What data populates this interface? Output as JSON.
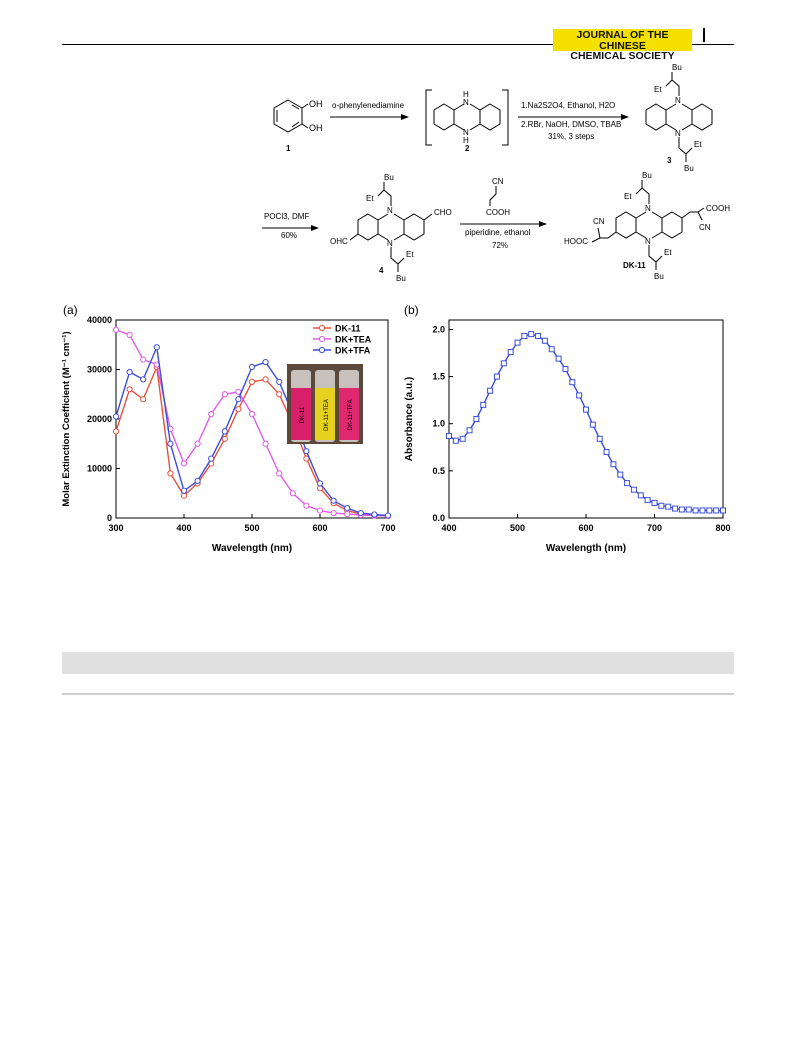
{
  "header": {
    "journal_line1": "JOURNAL OF THE CHINESE",
    "journal_line2": "CHEMICAL SOCIETY"
  },
  "scheme": {
    "reagent_step1": "o-phenylenediamine",
    "reagent_step2a": "1.Na2S2O4, Ethanol, H2O",
    "reagent_step2b": "2.RBr, NaOH, DMSO, TBAB",
    "reagent_step2c": "31%, 3 steps",
    "reagent_step3a": "POCl3, DMF",
    "reagent_step3b": "60%",
    "reagent_step4a": "piperidine, ethanol",
    "reagent_step4b": "72%",
    "cpd1": "1",
    "cpd2": "2",
    "cpd3": "3",
    "cpd4": "4",
    "cpd5": "DK-11",
    "groups": {
      "oh": "OH",
      "bu": "Bu",
      "et": "Et",
      "cho": "CHO",
      "ohc": "OHC",
      "cn": "CN",
      "cooh": "COOH",
      "hooc": "HOOC",
      "n": "N",
      "h": "H"
    }
  },
  "panel_labels": {
    "a": "(a)",
    "b": "(b)"
  },
  "vial_labels": [
    "DK-11",
    "DK-11+TEA",
    "DK-11+TFA"
  ],
  "colors": {
    "dk11": "#e8523f",
    "tea": "#e05ce8",
    "tfa": "#3c4fd8",
    "badge": "#f5e000"
  },
  "chart_data": [
    {
      "type": "line",
      "xlabel": "Wavelength (nm)",
      "ylabel": "Molar Extinction Coefficient (M⁻¹ cm⁻¹)",
      "xlim": [
        300,
        700
      ],
      "ylim": [
        0,
        40000
      ],
      "xticks": [
        300,
        400,
        500,
        600,
        700
      ],
      "yticks": [
        0,
        10000,
        20000,
        30000,
        40000
      ],
      "legend_position": "top-right",
      "x": [
        300,
        320,
        340,
        360,
        380,
        400,
        420,
        440,
        460,
        480,
        500,
        520,
        540,
        560,
        580,
        600,
        620,
        640,
        660,
        680,
        700
      ],
      "series": [
        {
          "name": "DK-11",
          "values": [
            17500,
            26000,
            24000,
            30500,
            9000,
            4500,
            7000,
            11000,
            16000,
            22000,
            27500,
            28000,
            25000,
            19000,
            12000,
            6000,
            3000,
            1500,
            800,
            500,
            400
          ]
        },
        {
          "name": "DK+TEA",
          "values": [
            38000,
            37000,
            32000,
            31000,
            18000,
            11000,
            15000,
            21000,
            25000,
            25500,
            21000,
            15000,
            9000,
            5000,
            2500,
            1500,
            1000,
            800,
            600,
            500,
            400
          ]
        },
        {
          "name": "DK+TFA",
          "values": [
            20500,
            29500,
            28000,
            34500,
            15000,
            5500,
            7500,
            12000,
            17500,
            24000,
            30500,
            31500,
            27500,
            21000,
            13500,
            7000,
            3500,
            2000,
            1000,
            700,
            500
          ]
        }
      ]
    },
    {
      "type": "line",
      "xlabel": "Wavelength (nm)",
      "ylabel": "Absorbance (a.u.)",
      "xlim": [
        400,
        800
      ],
      "ylim": [
        0.0,
        2.1
      ],
      "xticks": [
        400,
        500,
        600,
        700,
        800
      ],
      "yticks": [
        0.0,
        0.5,
        1.0,
        1.5,
        2.0
      ],
      "x": [
        400,
        410,
        420,
        430,
        440,
        450,
        460,
        470,
        480,
        490,
        500,
        510,
        520,
        530,
        540,
        550,
        560,
        570,
        580,
        590,
        600,
        610,
        620,
        630,
        640,
        650,
        660,
        670,
        680,
        690,
        700,
        710,
        720,
        730,
        740,
        750,
        760,
        770,
        780,
        790,
        800
      ],
      "series": [
        {
          "values": [
            0.87,
            0.82,
            0.84,
            0.93,
            1.05,
            1.2,
            1.35,
            1.5,
            1.64,
            1.76,
            1.86,
            1.93,
            1.95,
            1.93,
            1.88,
            1.79,
            1.69,
            1.58,
            1.44,
            1.3,
            1.15,
            0.99,
            0.84,
            0.7,
            0.57,
            0.46,
            0.37,
            0.3,
            0.24,
            0.19,
            0.16,
            0.13,
            0.12,
            0.1,
            0.09,
            0.09,
            0.08,
            0.08,
            0.08,
            0.08,
            0.08
          ]
        }
      ]
    }
  ]
}
